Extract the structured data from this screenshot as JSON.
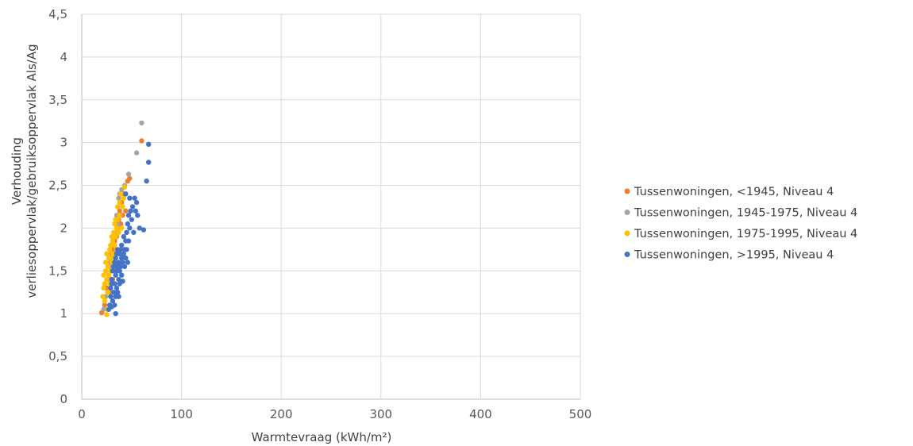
{
  "chart_data": {
    "type": "scatter",
    "title": "",
    "xlabel": "Warmtevraag (kWh/m²)",
    "ylabel_lines": [
      "Verhouding",
      "verliesoppervlak/gebruiksoppervlak Als/Ag"
    ],
    "xlim": [
      0,
      500
    ],
    "ylim": [
      0,
      4.5
    ],
    "x_ticks": [
      0,
      100,
      200,
      300,
      400,
      500
    ],
    "x_tick_labels": [
      "0",
      "100",
      "200",
      "300",
      "400",
      "500"
    ],
    "y_ticks": [
      0,
      0.5,
      1,
      1.5,
      2,
      2.5,
      3,
      3.5,
      4,
      4.5
    ],
    "y_tick_labels": [
      "0",
      "0,5",
      "1",
      "1,5",
      "2",
      "2,5",
      "3",
      "3,5",
      "4",
      "4,5"
    ],
    "grid": true,
    "legend_position": "right",
    "series": [
      {
        "name": "Tussenwoningen, <1945, Niveau 4",
        "color": "#ED7D31",
        "points": [
          [
            20,
            1.01
          ],
          [
            23,
            1.1
          ],
          [
            25,
            1.3
          ],
          [
            27,
            1.45
          ],
          [
            29,
            1.6
          ],
          [
            30,
            1.7
          ],
          [
            32,
            1.75
          ],
          [
            33,
            1.85
          ],
          [
            35,
            1.9
          ],
          [
            36,
            2.0
          ],
          [
            37,
            2.1
          ],
          [
            38,
            2.2
          ],
          [
            40,
            2.3
          ],
          [
            42,
            2.4
          ],
          [
            44,
            2.2
          ],
          [
            46,
            2.55
          ],
          [
            48,
            2.58
          ],
          [
            60,
            3.02
          ],
          [
            34,
            1.55
          ],
          [
            31,
            1.4
          ],
          [
            28,
            1.25
          ],
          [
            39,
            2.05
          ],
          [
            41,
            2.15
          ]
        ]
      },
      {
        "name": "Tussenwoningen, 1945-1975, Niveau 4",
        "color": "#A5A5A5",
        "points": [
          [
            22,
            1.05
          ],
          [
            24,
            1.2
          ],
          [
            26,
            1.4
          ],
          [
            28,
            1.55
          ],
          [
            30,
            1.65
          ],
          [
            32,
            1.8
          ],
          [
            34,
            1.95
          ],
          [
            36,
            2.05
          ],
          [
            37,
            2.35
          ],
          [
            38,
            2.4
          ],
          [
            40,
            2.45
          ],
          [
            43,
            2.5
          ],
          [
            47,
            2.63
          ],
          [
            55,
            2.88
          ],
          [
            60,
            3.23
          ],
          [
            35,
            2.15
          ],
          [
            33,
            1.7
          ],
          [
            29,
            1.5
          ]
        ]
      },
      {
        "name": "Tussenwoningen, 1975-1995, Niveau 4",
        "color": "#FFC000",
        "points": [
          [
            21,
            1.2
          ],
          [
            22,
            1.3
          ],
          [
            22,
            1.45
          ],
          [
            23,
            1.15
          ],
          [
            23,
            1.35
          ],
          [
            24,
            1.5
          ],
          [
            24,
            1.6
          ],
          [
            25,
            0.99
          ],
          [
            25,
            1.4
          ],
          [
            25,
            1.7
          ],
          [
            26,
            1.25
          ],
          [
            26,
            1.55
          ],
          [
            27,
            1.45
          ],
          [
            27,
            1.65
          ],
          [
            28,
            1.35
          ],
          [
            28,
            1.75
          ],
          [
            29,
            1.5
          ],
          [
            29,
            1.8
          ],
          [
            30,
            1.6
          ],
          [
            30,
            1.9
          ],
          [
            31,
            1.7
          ],
          [
            31,
            1.85
          ],
          [
            32,
            1.95
          ],
          [
            33,
            1.8
          ],
          [
            33,
            2.05
          ],
          [
            34,
            1.9
          ],
          [
            34,
            2.1
          ],
          [
            35,
            2.0
          ],
          [
            36,
            2.1
          ],
          [
            36,
            2.25
          ],
          [
            37,
            1.95
          ],
          [
            38,
            2.15
          ],
          [
            38,
            2.3
          ],
          [
            39,
            2.4
          ],
          [
            40,
            2.0
          ],
          [
            41,
            2.25
          ],
          [
            42,
            2.35
          ],
          [
            43,
            2.48
          ],
          [
            35,
            1.75
          ],
          [
            32,
            1.65
          ],
          [
            30,
            1.4
          ],
          [
            26,
            1.05
          ]
        ]
      },
      {
        "name": "Tussenwoningen, >1995, Niveau 4",
        "color": "#4472C4",
        "points": [
          [
            27,
            1.05
          ],
          [
            28,
            1.1
          ],
          [
            29,
            1.2
          ],
          [
            29,
            1.3
          ],
          [
            30,
            1.08
          ],
          [
            30,
            1.4
          ],
          [
            31,
            1.15
          ],
          [
            31,
            1.5
          ],
          [
            32,
            1.25
          ],
          [
            32,
            1.55
          ],
          [
            33,
            1.1
          ],
          [
            33,
            1.35
          ],
          [
            33,
            1.6
          ],
          [
            34,
            1.2
          ],
          [
            34,
            1.45
          ],
          [
            34,
            1.65
          ],
          [
            35,
            1.3
          ],
          [
            35,
            1.5
          ],
          [
            35,
            1.7
          ],
          [
            36,
            1.25
          ],
          [
            36,
            1.55
          ],
          [
            36,
            1.75
          ],
          [
            37,
            1.4
          ],
          [
            37,
            1.6
          ],
          [
            37,
            1.2
          ],
          [
            38,
            1.5
          ],
          [
            38,
            1.7
          ],
          [
            38,
            1.35
          ],
          [
            39,
            1.55
          ],
          [
            39,
            1.75
          ],
          [
            40,
            1.45
          ],
          [
            40,
            1.65
          ],
          [
            40,
            1.8
          ],
          [
            41,
            1.6
          ],
          [
            41,
            1.38
          ],
          [
            42,
            1.7
          ],
          [
            42,
            1.9
          ],
          [
            43,
            1.55
          ],
          [
            43,
            1.75
          ],
          [
            44,
            1.85
          ],
          [
            44,
            1.65
          ],
          [
            45,
            1.95
          ],
          [
            45,
            1.75
          ],
          [
            46,
            2.05
          ],
          [
            46,
            1.6
          ],
          [
            47,
            2.15
          ],
          [
            47,
            1.85
          ],
          [
            48,
            2.35
          ],
          [
            48,
            2.0
          ],
          [
            49,
            2.2
          ],
          [
            50,
            2.1
          ],
          [
            51,
            2.25
          ],
          [
            52,
            1.95
          ],
          [
            53,
            2.35
          ],
          [
            54,
            2.2
          ],
          [
            55,
            2.3
          ],
          [
            56,
            2.15
          ],
          [
            58,
            2.0
          ],
          [
            62,
            1.98
          ],
          [
            65,
            2.55
          ],
          [
            67,
            2.77
          ],
          [
            67,
            2.98
          ],
          [
            44,
            2.4
          ],
          [
            30,
            1.35
          ],
          [
            34,
            1.0
          ]
        ]
      }
    ]
  }
}
